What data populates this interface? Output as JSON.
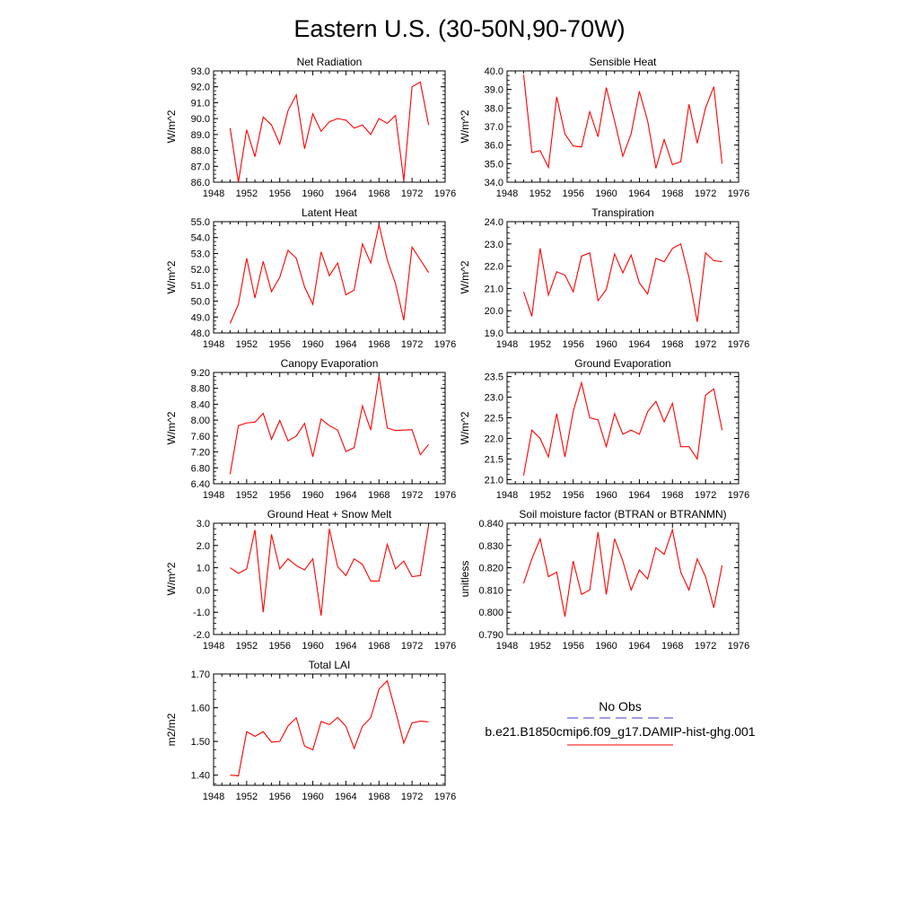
{
  "title": "Eastern U.S. (30-50N,90-70W)",
  "legend": {
    "obs_label": "No Obs",
    "model_label": "b.e21.B1850cmip6.f09_g17.DAMIP-hist-ghg.001",
    "obs_color": "#3b3bd6",
    "model_color": "#ff0000",
    "obs_style": "dashed",
    "model_style": "solid"
  },
  "chart_data": [
    {
      "type": "line",
      "title": "Net Radiation",
      "ylabel": "W/m^2",
      "xlim": [
        1948,
        1976
      ],
      "ylim": [
        86.0,
        93.0
      ],
      "xticks": [
        "1948",
        "1952",
        "1956",
        "1960",
        "1964",
        "1968",
        "1972",
        "1976"
      ],
      "yticks": [
        "86.0",
        "87.0",
        "88.0",
        "89.0",
        "90.0",
        "91.0",
        "92.0",
        "93.0"
      ],
      "x": [
        1950,
        1951,
        1952,
        1953,
        1954,
        1955,
        1956,
        1957,
        1958,
        1959,
        1960,
        1961,
        1962,
        1963,
        1964,
        1965,
        1966,
        1967,
        1968,
        1969,
        1970,
        1971,
        1972,
        1973,
        1974
      ],
      "series": [
        {
          "color": "#ff0000",
          "values": [
            89.4,
            86.0,
            89.3,
            87.6,
            90.1,
            89.6,
            88.4,
            90.5,
            91.5,
            88.1,
            90.3,
            89.2,
            89.8,
            90.0,
            89.9,
            89.4,
            89.6,
            89.0,
            90.0,
            89.7,
            90.2,
            86.1,
            92.0,
            92.3,
            89.6
          ]
        }
      ]
    },
    {
      "type": "line",
      "title": "Sensible Heat",
      "ylabel": "W/m^2",
      "xlim": [
        1948,
        1976
      ],
      "ylim": [
        34.0,
        40.0
      ],
      "xticks": [
        "1948",
        "1952",
        "1956",
        "1960",
        "1964",
        "1968",
        "1972",
        "1976"
      ],
      "yticks": [
        "34.0",
        "35.0",
        "36.0",
        "37.0",
        "38.0",
        "39.0",
        "40.0"
      ],
      "x": [
        1950,
        1951,
        1952,
        1953,
        1954,
        1955,
        1956,
        1957,
        1958,
        1959,
        1960,
        1961,
        1962,
        1963,
        1964,
        1965,
        1966,
        1967,
        1968,
        1969,
        1970,
        1971,
        1972,
        1973,
        1974
      ],
      "series": [
        {
          "color": "#ff0000",
          "values": [
            39.8,
            35.6,
            35.7,
            34.8,
            38.6,
            36.6,
            35.95,
            35.9,
            37.8,
            36.45,
            39.1,
            37.3,
            35.4,
            36.6,
            38.9,
            37.3,
            34.75,
            36.3,
            34.95,
            35.1,
            38.2,
            36.1,
            38.0,
            39.15,
            35.0
          ]
        }
      ]
    },
    {
      "type": "line",
      "title": "Latent Heat",
      "ylabel": "W/m^2",
      "xlim": [
        1948,
        1976
      ],
      "ylim": [
        48.0,
        55.0
      ],
      "xticks": [
        "1948",
        "1952",
        "1956",
        "1960",
        "1964",
        "1968",
        "1972",
        "1976"
      ],
      "yticks": [
        "48.0",
        "49.0",
        "50.0",
        "51.0",
        "52.0",
        "53.0",
        "54.0",
        "55.0"
      ],
      "x": [
        1950,
        1951,
        1952,
        1953,
        1954,
        1955,
        1956,
        1957,
        1958,
        1959,
        1960,
        1961,
        1962,
        1963,
        1964,
        1965,
        1966,
        1967,
        1968,
        1969,
        1970,
        1971,
        1972,
        1973,
        1974
      ],
      "series": [
        {
          "color": "#ff0000",
          "values": [
            48.6,
            49.8,
            52.7,
            50.2,
            52.5,
            50.6,
            51.5,
            53.2,
            52.7,
            50.9,
            49.8,
            53.1,
            51.6,
            52.4,
            50.4,
            50.7,
            53.6,
            52.4,
            54.8,
            52.6,
            51.1,
            48.8,
            53.4,
            52.6,
            51.8
          ]
        }
      ]
    },
    {
      "type": "line",
      "title": "Transpiration",
      "ylabel": "W/m^2",
      "xlim": [
        1948,
        1976
      ],
      "ylim": [
        19.0,
        24.0
      ],
      "xticks": [
        "1948",
        "1952",
        "1956",
        "1960",
        "1964",
        "1968",
        "1972",
        "1976"
      ],
      "yticks": [
        "19.0",
        "20.0",
        "21.0",
        "22.0",
        "23.0",
        "24.0"
      ],
      "x": [
        1950,
        1951,
        1952,
        1953,
        1954,
        1955,
        1956,
        1957,
        1958,
        1959,
        1960,
        1961,
        1962,
        1963,
        1964,
        1965,
        1966,
        1967,
        1968,
        1969,
        1970,
        1971,
        1972,
        1973,
        1974
      ],
      "series": [
        {
          "color": "#ff0000",
          "values": [
            20.85,
            19.75,
            22.8,
            20.7,
            21.75,
            21.6,
            20.85,
            22.45,
            22.6,
            20.45,
            20.95,
            22.55,
            21.7,
            22.5,
            21.25,
            20.75,
            22.35,
            22.2,
            22.8,
            23.0,
            21.5,
            19.5,
            22.6,
            22.25,
            22.2
          ]
        }
      ]
    },
    {
      "type": "line",
      "title": "Canopy Evaporation",
      "ylabel": "W/m^2",
      "xlim": [
        1948,
        1976
      ],
      "ylim": [
        6.4,
        9.2
      ],
      "xticks": [
        "1948",
        "1952",
        "1956",
        "1960",
        "1964",
        "1968",
        "1972",
        "1976"
      ],
      "yticks": [
        "6.40",
        "6.80",
        "7.20",
        "7.60",
        "8.00",
        "8.40",
        "8.80",
        "9.20"
      ],
      "x": [
        1950,
        1951,
        1952,
        1953,
        1954,
        1955,
        1956,
        1957,
        1958,
        1959,
        1960,
        1961,
        1962,
        1963,
        1964,
        1965,
        1966,
        1967,
        1968,
        1969,
        1970,
        1971,
        1972,
        1973,
        1974
      ],
      "series": [
        {
          "color": "#ff0000",
          "values": [
            6.64,
            7.86,
            7.93,
            7.95,
            8.17,
            7.52,
            7.99,
            7.48,
            7.6,
            7.92,
            7.08,
            8.03,
            7.86,
            7.75,
            7.21,
            7.31,
            8.36,
            7.75,
            9.12,
            7.8,
            7.74,
            7.75,
            7.76,
            7.13,
            7.39
          ]
        }
      ]
    },
    {
      "type": "line",
      "title": "Ground Evaporation",
      "ylabel": "W/m^2",
      "xlim": [
        1948,
        1976
      ],
      "ylim": [
        20.9,
        23.6
      ],
      "xticks": [
        "1948",
        "1952",
        "1956",
        "1960",
        "1964",
        "1968",
        "1972",
        "1976"
      ],
      "yticks": [
        "21.0",
        "21.5",
        "22.0",
        "22.5",
        "23.0",
        "23.5"
      ],
      "x": [
        1950,
        1951,
        1952,
        1953,
        1954,
        1955,
        1956,
        1957,
        1958,
        1959,
        1960,
        1961,
        1962,
        1963,
        1964,
        1965,
        1966,
        1967,
        1968,
        1969,
        1970,
        1971,
        1972,
        1973,
        1974
      ],
      "series": [
        {
          "color": "#ff0000",
          "values": [
            21.1,
            22.2,
            22.0,
            21.55,
            22.6,
            21.55,
            22.65,
            23.35,
            22.5,
            22.45,
            21.8,
            22.6,
            22.1,
            22.2,
            22.1,
            22.65,
            22.9,
            22.4,
            22.85,
            21.8,
            21.8,
            21.5,
            23.05,
            23.2,
            22.2
          ]
        }
      ]
    },
    {
      "type": "line",
      "title": "Ground Heat + Snow Melt",
      "ylabel": "W/m^2",
      "xlim": [
        1948,
        1976
      ],
      "ylim": [
        -2.0,
        3.0
      ],
      "xticks": [
        "1948",
        "1952",
        "1956",
        "1960",
        "1964",
        "1968",
        "1972",
        "1976"
      ],
      "yticks": [
        "-2.0",
        "-1.0",
        "0.0",
        "1.0",
        "2.0",
        "3.0"
      ],
      "x": [
        1950,
        1951,
        1952,
        1953,
        1954,
        1955,
        1956,
        1957,
        1958,
        1959,
        1960,
        1961,
        1962,
        1963,
        1964,
        1965,
        1966,
        1967,
        1968,
        1969,
        1970,
        1971,
        1972,
        1973,
        1974
      ],
      "series": [
        {
          "color": "#ff0000",
          "values": [
            1.0,
            0.75,
            0.95,
            2.7,
            -1.0,
            2.5,
            0.95,
            1.4,
            1.1,
            0.9,
            1.4,
            -1.15,
            2.75,
            1.05,
            0.65,
            1.4,
            1.15,
            0.4,
            0.4,
            2.05,
            0.95,
            1.3,
            0.6,
            0.65,
            2.9
          ]
        }
      ]
    },
    {
      "type": "line",
      "title": "Soil moisture factor (BTRAN or BTRANMN)",
      "ylabel": "unitless",
      "xlim": [
        1948,
        1976
      ],
      "ylim": [
        0.79,
        0.84
      ],
      "xticks": [
        "1948",
        "1952",
        "1956",
        "1960",
        "1964",
        "1968",
        "1972",
        "1976"
      ],
      "yticks": [
        "0.790",
        "0.800",
        "0.810",
        "0.820",
        "0.830",
        "0.840"
      ],
      "x": [
        1950,
        1951,
        1952,
        1953,
        1954,
        1955,
        1956,
        1957,
        1958,
        1959,
        1960,
        1961,
        1962,
        1963,
        1964,
        1965,
        1966,
        1967,
        1968,
        1969,
        1970,
        1971,
        1972,
        1973,
        1974
      ],
      "series": [
        {
          "color": "#ff0000",
          "values": [
            0.813,
            0.824,
            0.833,
            0.816,
            0.818,
            0.798,
            0.823,
            0.808,
            0.81,
            0.836,
            0.808,
            0.833,
            0.823,
            0.81,
            0.819,
            0.815,
            0.829,
            0.826,
            0.837,
            0.818,
            0.81,
            0.824,
            0.816,
            0.802,
            0.821
          ]
        }
      ]
    },
    {
      "type": "line",
      "title": "Total LAI",
      "ylabel": "m2/m2",
      "xlim": [
        1948,
        1976
      ],
      "ylim": [
        1.37,
        1.7
      ],
      "xticks": [
        "1948",
        "1952",
        "1956",
        "1960",
        "1964",
        "1968",
        "1972",
        "1976"
      ],
      "yticks": [
        "1.40",
        "1.50",
        "1.60",
        "1.70"
      ],
      "x": [
        1950,
        1951,
        1952,
        1953,
        1954,
        1955,
        1956,
        1957,
        1958,
        1959,
        1960,
        1961,
        1962,
        1963,
        1964,
        1965,
        1966,
        1967,
        1968,
        1969,
        1970,
        1971,
        1972,
        1973,
        1974
      ],
      "series": [
        {
          "color": "#ff0000",
          "values": [
            1.4,
            1.398,
            1.529,
            1.515,
            1.529,
            1.498,
            1.5,
            1.546,
            1.57,
            1.486,
            1.475,
            1.559,
            1.55,
            1.571,
            1.545,
            1.479,
            1.545,
            1.57,
            1.655,
            1.68,
            1.59,
            1.495,
            1.555,
            1.56,
            1.558
          ]
        }
      ]
    }
  ]
}
